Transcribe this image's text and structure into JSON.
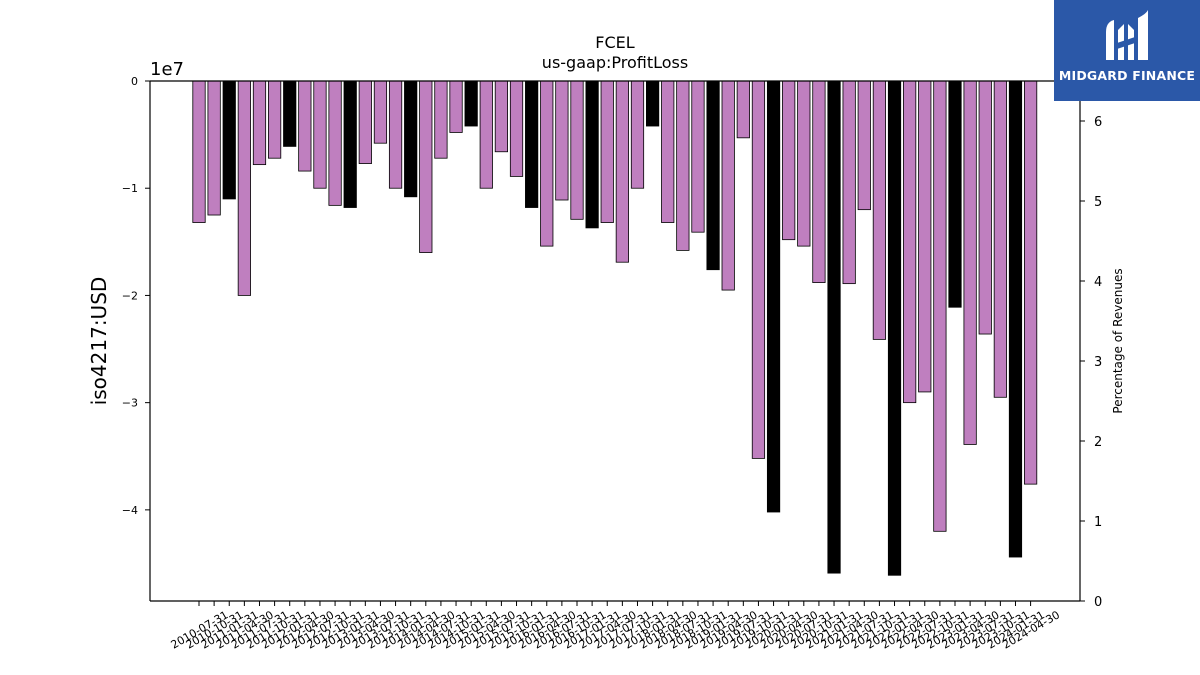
{
  "chart_data": {
    "type": "bar",
    "title": "FCEL",
    "subtitle": "us-gaap:ProfitLoss",
    "ylabel": "iso4217:USD",
    "y_offset_label": "1e7",
    "y_scale": 10000000,
    "ylim": [
      -4.85,
      0
    ],
    "yticks": [
      0,
      -1,
      -2,
      -3,
      -4
    ],
    "ytick_labels": [
      "0",
      "−1",
      "−2",
      "−3",
      "−4"
    ],
    "y2label": "Percentage of Revenues",
    "y2lim": [
      0,
      6.5
    ],
    "y2ticks": [
      0,
      1,
      2,
      3,
      4,
      5,
      6
    ],
    "y2tick_labels": [
      "0",
      "1",
      "2",
      "3",
      "4",
      "5",
      "6"
    ],
    "bar_color": "#bf7fbf",
    "highlight_color": "#000000",
    "categories": [
      "2010-07-31",
      "2010-10-31",
      "2011-01-31",
      "2011-04-30",
      "2011-07-31",
      "2011-10-31",
      "2012-01-31",
      "2012-04-30",
      "2012-07-31",
      "2012-10-31",
      "2013-01-31",
      "2013-04-30",
      "2013-07-31",
      "2013-10-31",
      "2014-01-31",
      "2014-04-30",
      "2014-07-31",
      "2014-10-31",
      "2015-01-31",
      "2015-04-30",
      "2015-07-31",
      "2015-10-31",
      "2016-01-31",
      "2016-04-30",
      "2016-07-31",
      "2016-10-31",
      "2017-01-31",
      "2017-04-30",
      "2017-07-31",
      "2017-10-31",
      "2018-01-31",
      "2018-04-30",
      "2018-07-31",
      "2018-10-31",
      "2019-01-31",
      "2019-04-30",
      "2019-07-31",
      "2019-10-31",
      "2020-01-31",
      "2020-04-30",
      "2020-07-31",
      "2020-10-31",
      "2021-01-31",
      "2021-04-30",
      "2021-07-31",
      "2021-10-31",
      "2022-01-31",
      "2022-04-30",
      "2022-07-31",
      "2022-10-31",
      "2023-01-31",
      "2023-04-30",
      "2023-07-31",
      "2023-10-31",
      "2024-01-31",
      "2024-04-30"
    ],
    "values": [
      -13200000,
      -12500000,
      -11000000,
      -20000000,
      -7800000,
      -7200000,
      -6100000,
      -8400000,
      -10000000,
      -11600000,
      -11800000,
      -7700000,
      -5800000,
      -10000000,
      -10800000,
      -16000000,
      -7200000,
      -4800000,
      -4200000,
      -10000000,
      -6600000,
      -8900000,
      -11800000,
      -15400000,
      -11100000,
      -12900000,
      -13700000,
      -13200000,
      -16900000,
      -10000000,
      -4200000,
      -13200000,
      -15800000,
      -14100000,
      -17600000,
      -19500000,
      -5300000,
      -35200000,
      -40200000,
      -14800000,
      -15400000,
      -18800000,
      -45900000,
      -18900000,
      -12000000,
      -24100000,
      -46100000,
      -30000000,
      -29000000,
      -42000000,
      -21100000,
      -33900000,
      -23600000,
      -29500000,
      -44400000,
      -37600000
    ],
    "highlight": [
      false,
      false,
      true,
      false,
      false,
      false,
      true,
      false,
      false,
      false,
      true,
      false,
      false,
      false,
      true,
      false,
      false,
      false,
      true,
      false,
      false,
      false,
      true,
      false,
      false,
      false,
      true,
      false,
      false,
      false,
      true,
      false,
      false,
      false,
      true,
      false,
      false,
      false,
      true,
      false,
      false,
      false,
      true,
      false,
      false,
      false,
      true,
      false,
      false,
      false,
      true,
      false,
      false,
      false,
      true,
      false
    ]
  },
  "logo": {
    "text": "MIDGARD FINANCE",
    "background": "#2b58a8",
    "color": "#ffffff"
  }
}
